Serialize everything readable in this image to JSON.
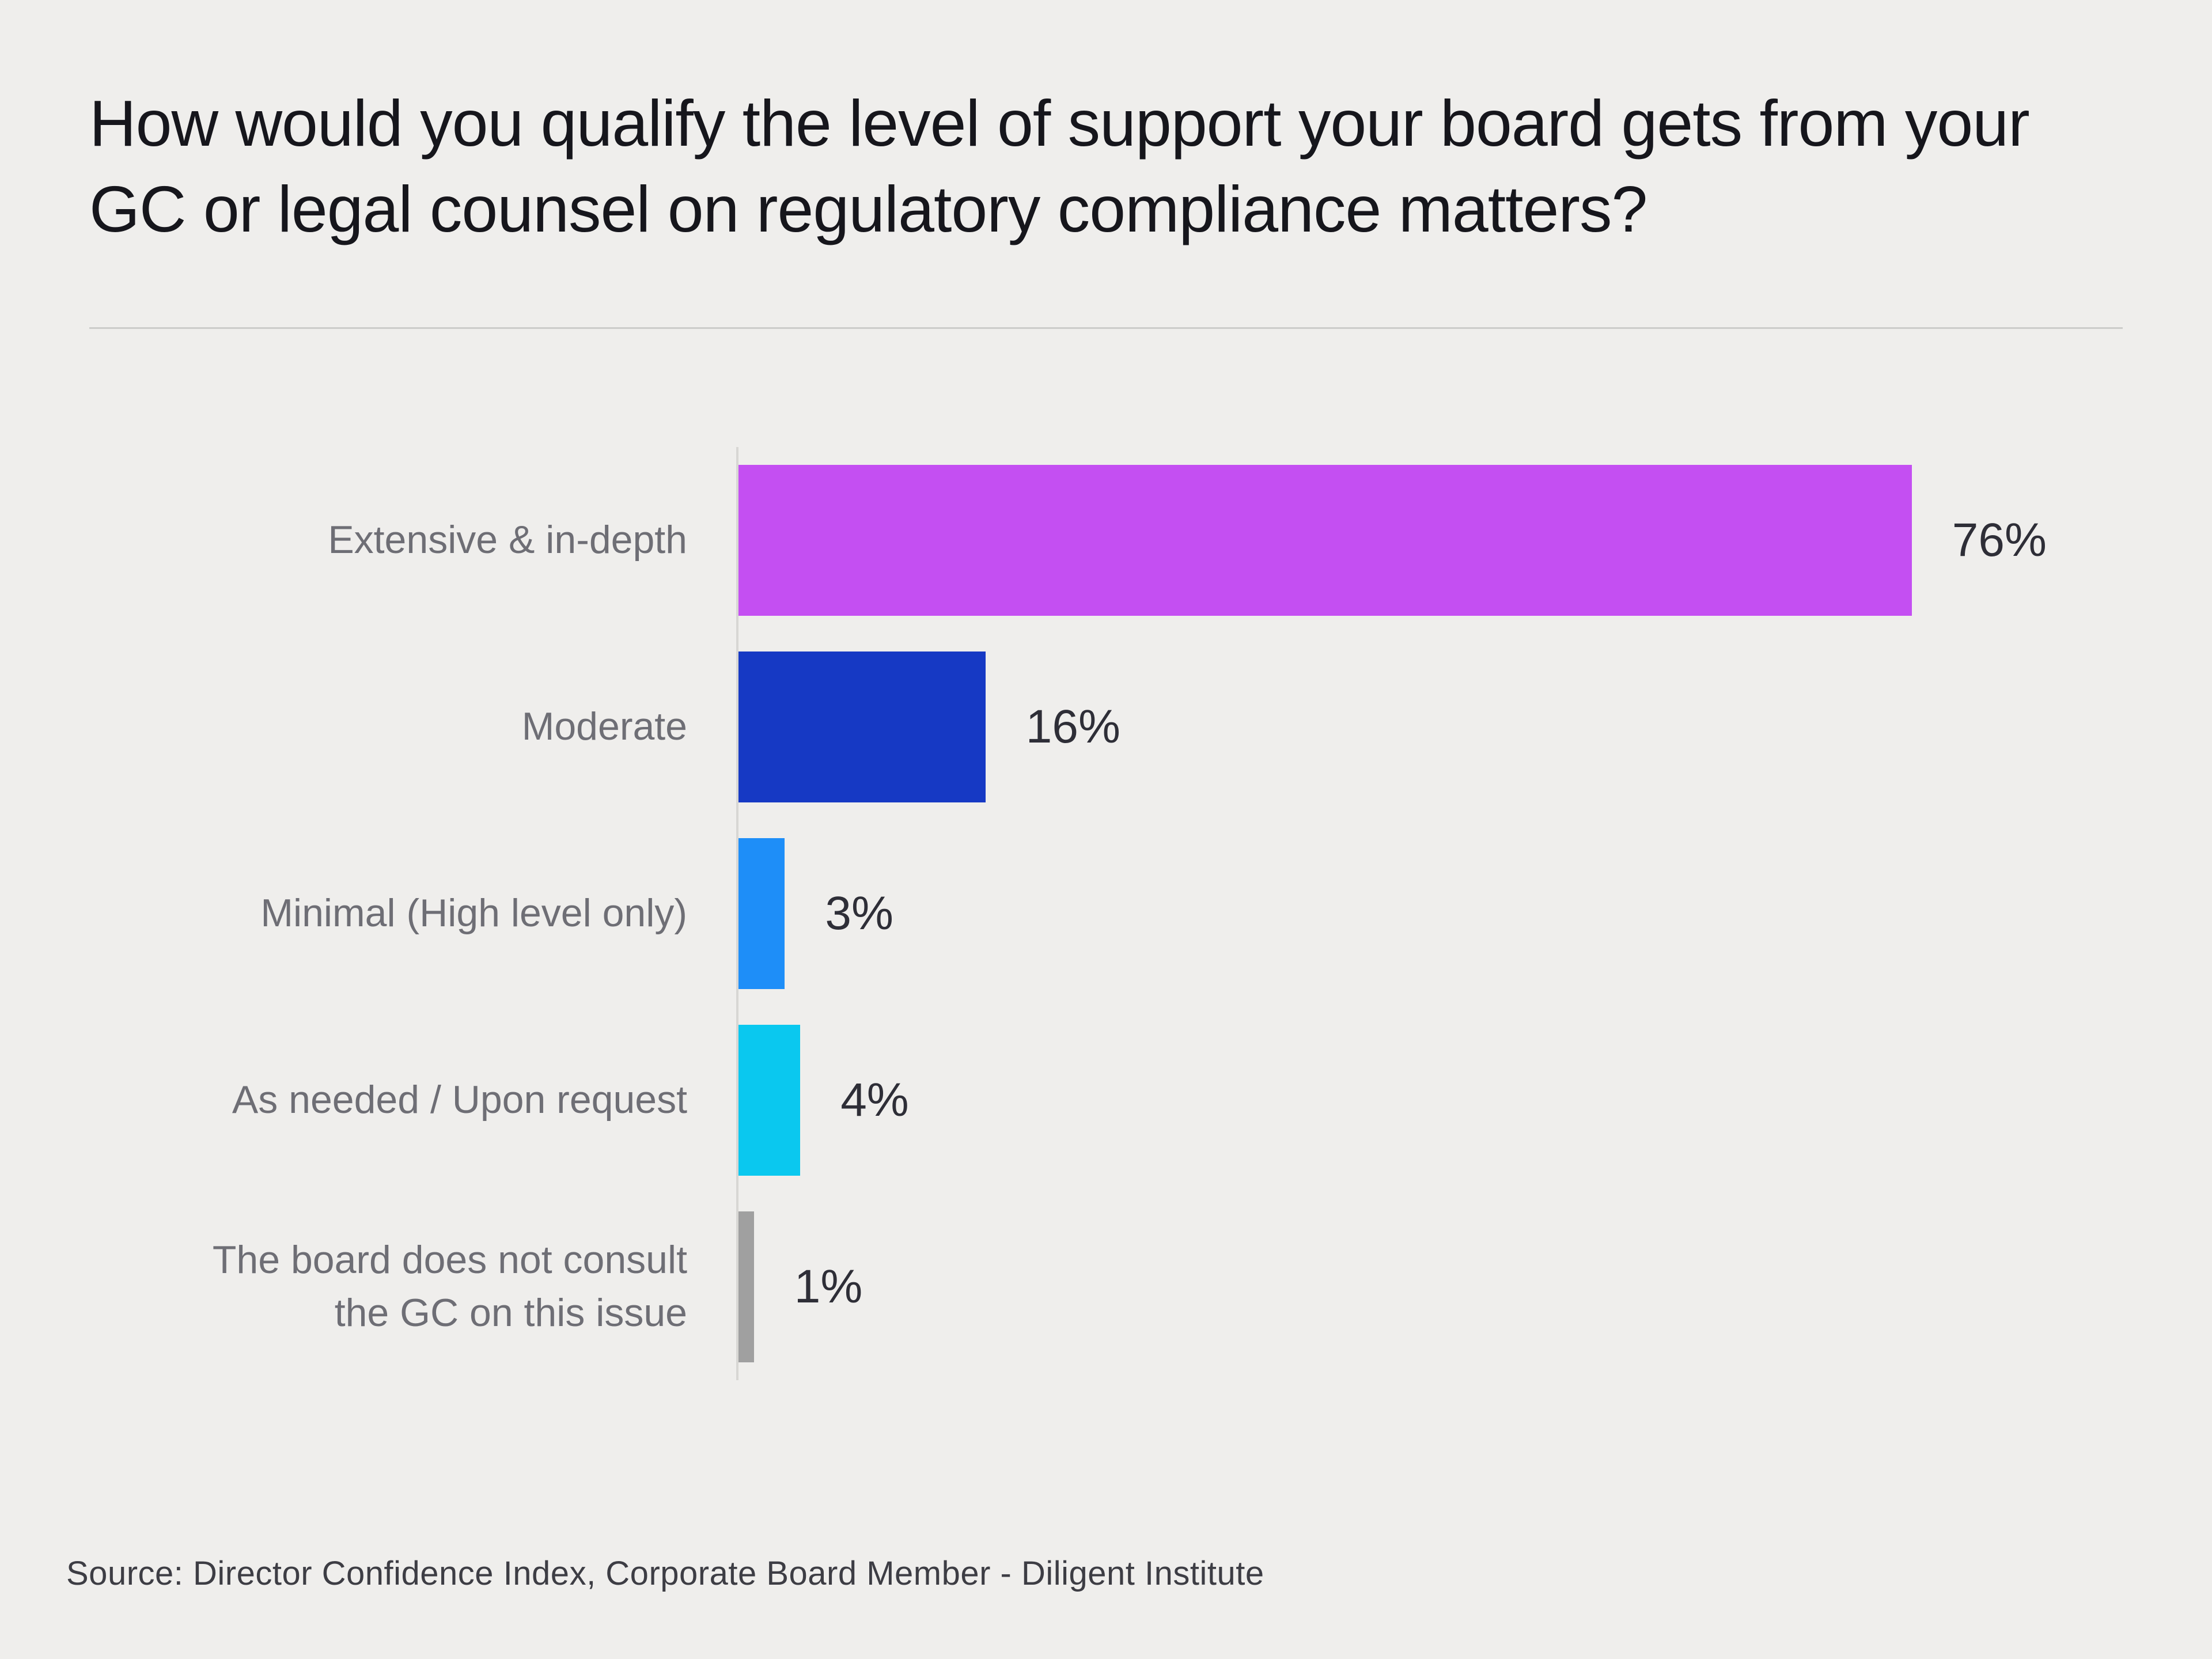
{
  "title": "How would you qualify the level of support your board gets from your GC or legal counsel on regulatory compliance matters?",
  "source": "Source: Director Confidence Index, Corporate Board Member - Diligent Institute",
  "chart_data": {
    "type": "bar",
    "orientation": "horizontal",
    "title": "How would you qualify the level of support your board gets from your GC or legal counsel on regulatory compliance matters?",
    "categories": [
      "Extensive & in-depth",
      "Moderate",
      "Minimal (High level only)",
      "As needed / Upon request",
      "The board does not consult\nthe GC on this issue"
    ],
    "values": [
      76,
      16,
      3,
      4,
      1
    ],
    "value_labels": [
      "76%",
      "16%",
      "3%",
      "4%",
      "1%"
    ],
    "bar_colors": [
      "#c44ff2",
      "#1639c4",
      "#1e8ef8",
      "#0ac8ef",
      "#a0a0a0"
    ],
    "xlim": [
      0,
      80
    ],
    "grid": false,
    "legend": false,
    "background_color": "#efeeec"
  }
}
